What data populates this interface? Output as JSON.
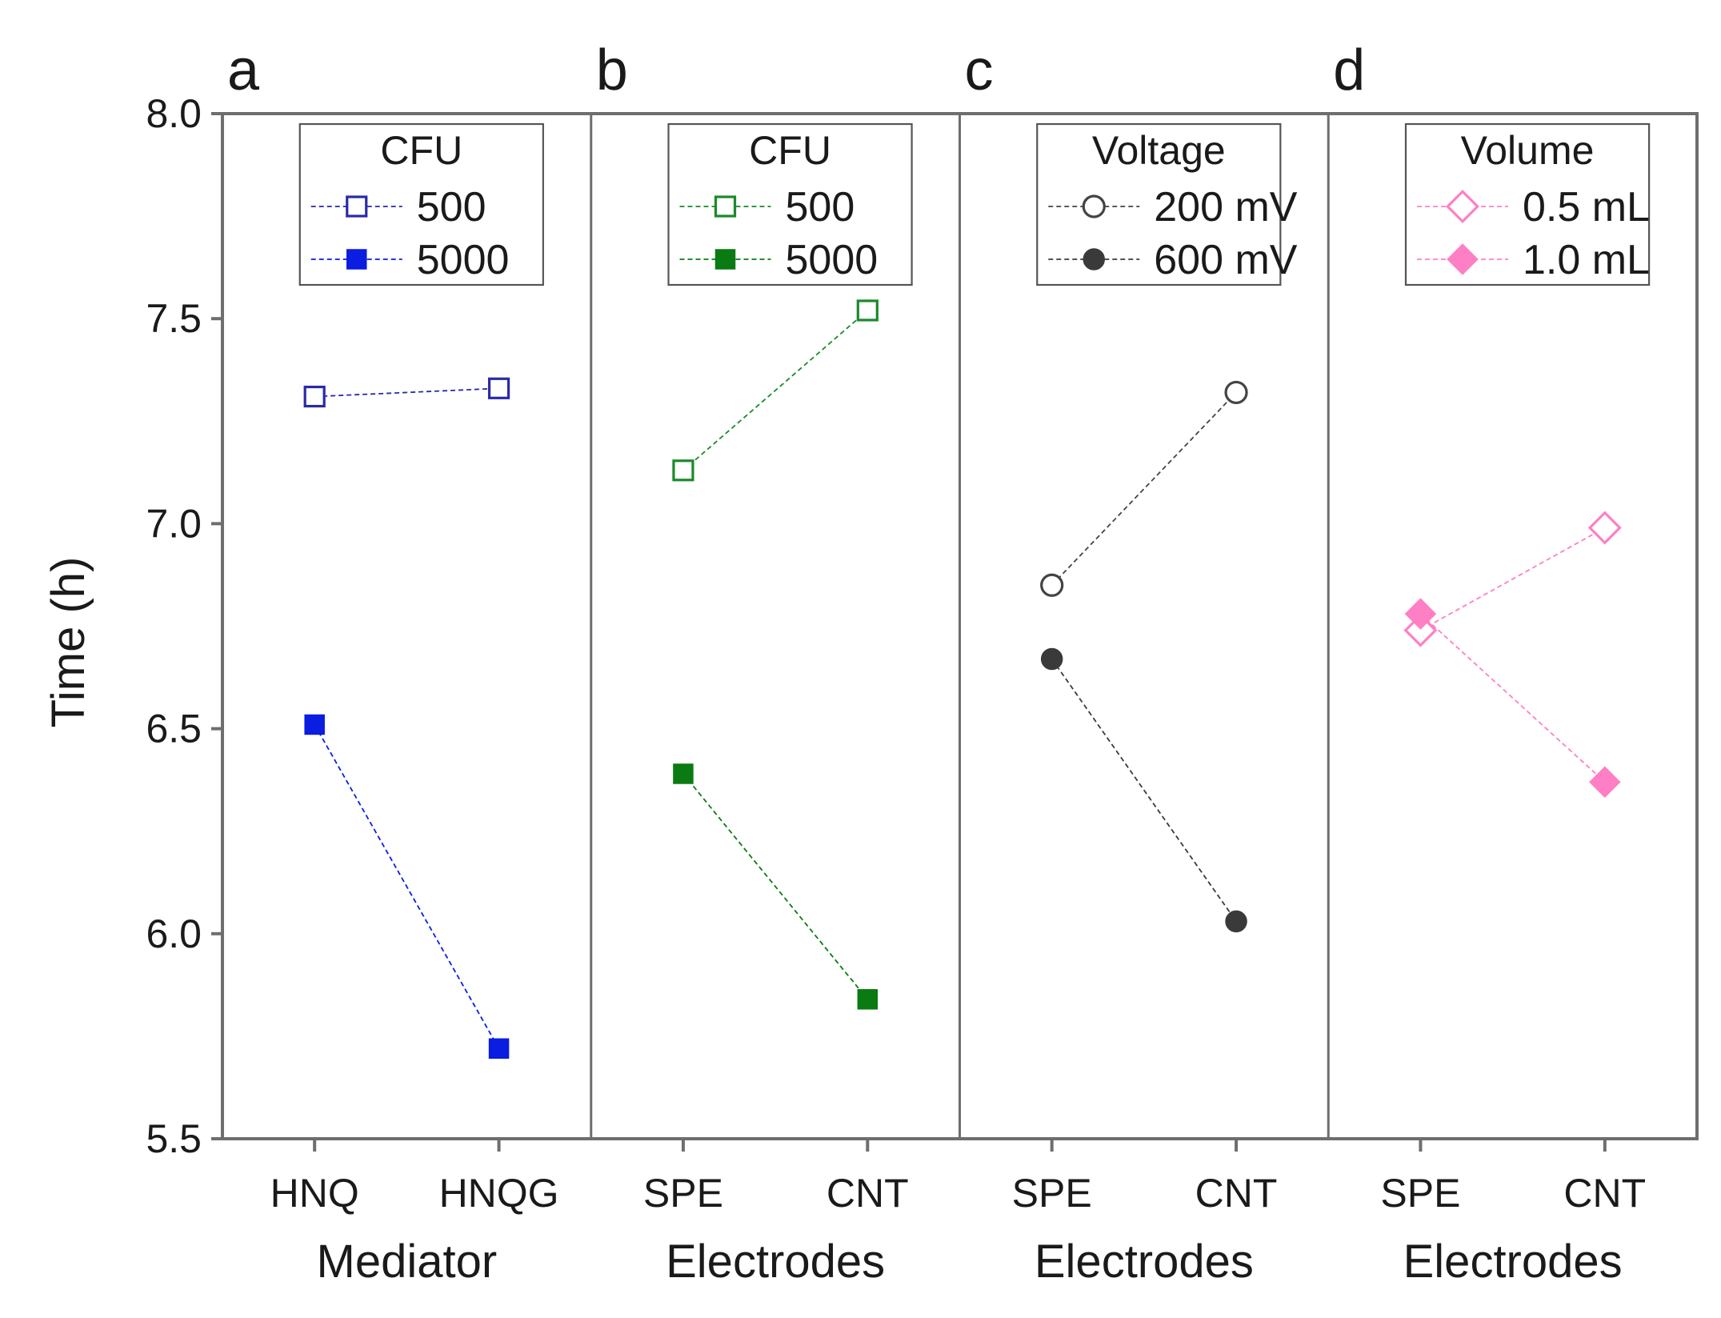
{
  "chart_data": {
    "type": "line",
    "ylabel": "Time (h)",
    "ylim": [
      5.5,
      8.0
    ],
    "yticks": [
      "5.5",
      "6.0",
      "6.5",
      "7.0",
      "7.5",
      "8.0"
    ],
    "panels": [
      {
        "letter": "a",
        "xlabel": "Mediator",
        "categories": [
          "HNQ",
          "HNQG"
        ],
        "legend_title": "CFU",
        "series": [
          {
            "name": "500",
            "values": [
              7.31,
              7.33
            ],
            "color": "#2a2aa8",
            "marker": "square",
            "filled": false
          },
          {
            "name": "5000",
            "values": [
              6.51,
              5.72
            ],
            "color": "#0b1de0",
            "marker": "square",
            "filled": true
          }
        ]
      },
      {
        "letter": "b",
        "xlabel": "Electrodes",
        "categories": [
          "SPE",
          "CNT"
        ],
        "legend_title": "CFU",
        "series": [
          {
            "name": "500",
            "values": [
              7.13,
              7.52
            ],
            "color": "#1a8a2a",
            "marker": "square",
            "filled": false
          },
          {
            "name": "5000",
            "values": [
              6.39,
              5.84
            ],
            "color": "#0a7a12",
            "marker": "square",
            "filled": true
          }
        ]
      },
      {
        "letter": "c",
        "xlabel": "Electrodes",
        "categories": [
          "SPE",
          "CNT"
        ],
        "legend_title": "Voltage",
        "series": [
          {
            "name": "200 mV",
            "values": [
              6.85,
              7.32
            ],
            "color": "#444444",
            "marker": "circle",
            "filled": false
          },
          {
            "name": "600 mV",
            "values": [
              6.67,
              6.03
            ],
            "color": "#3a3a3a",
            "marker": "circle",
            "filled": true
          }
        ]
      },
      {
        "letter": "d",
        "xlabel": "Electrodes",
        "categories": [
          "SPE",
          "CNT"
        ],
        "legend_title": "Volume",
        "series": [
          {
            "name": "0.5 mL",
            "values": [
              6.74,
              6.99
            ],
            "color": "#ff7fc4",
            "marker": "diamond",
            "filled": false
          },
          {
            "name": "1.0 mL",
            "values": [
              6.78,
              6.37
            ],
            "color": "#ff7fc4",
            "marker": "diamond",
            "filled": true
          }
        ]
      }
    ]
  }
}
